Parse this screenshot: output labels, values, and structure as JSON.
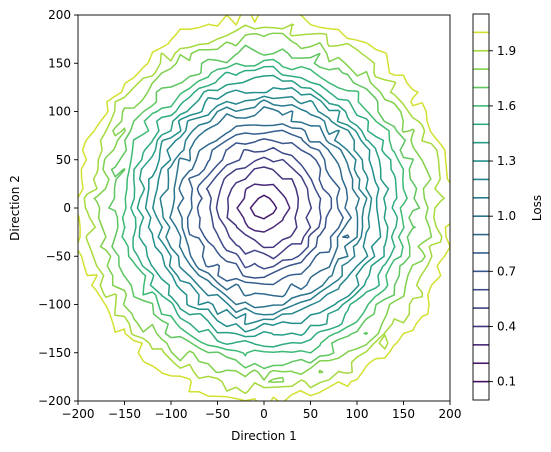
{
  "chart_data": {
    "type": "contour",
    "title": "",
    "xlabel": "Direction 1",
    "ylabel": "Direction 2",
    "xlim": [
      -200,
      200
    ],
    "ylim": [
      -200,
      200
    ],
    "xticks": [
      -200,
      -150,
      -100,
      -50,
      0,
      50,
      100,
      150,
      200
    ],
    "yticks": [
      -200,
      -150,
      -100,
      -50,
      0,
      50,
      100,
      150,
      200
    ],
    "grid": false,
    "colormap": "viridis",
    "colorbar": {
      "label": "Loss",
      "range": [
        0.0,
        2.1
      ],
      "tick_labels": [
        "0.1",
        "0.4",
        "0.7",
        "1.0",
        "1.3",
        "1.6",
        "1.9"
      ],
      "tick_values": [
        0.1,
        0.4,
        0.7,
        1.0,
        1.3,
        1.6,
        1.9
      ]
    },
    "contour_levels": [
      0.1,
      0.2,
      0.3,
      0.4,
      0.5,
      0.6,
      0.7,
      0.8,
      0.9,
      1.0,
      1.1,
      1.2,
      1.3,
      1.4,
      1.5,
      1.6,
      1.7,
      1.8,
      1.9,
      2.0
    ],
    "surface": {
      "form": "radial_bowl",
      "minimum_at": [
        0,
        0
      ],
      "min_loss": 0.1,
      "loss_at_radius": [
        {
          "radius": 0,
          "loss": 0.1
        },
        {
          "radius": 50,
          "loss": 0.5
        },
        {
          "radius": 100,
          "loss": 1.0
        },
        {
          "radius": 150,
          "loss": 1.6
        },
        {
          "radius": 200,
          "loss": 2.0
        }
      ]
    }
  }
}
